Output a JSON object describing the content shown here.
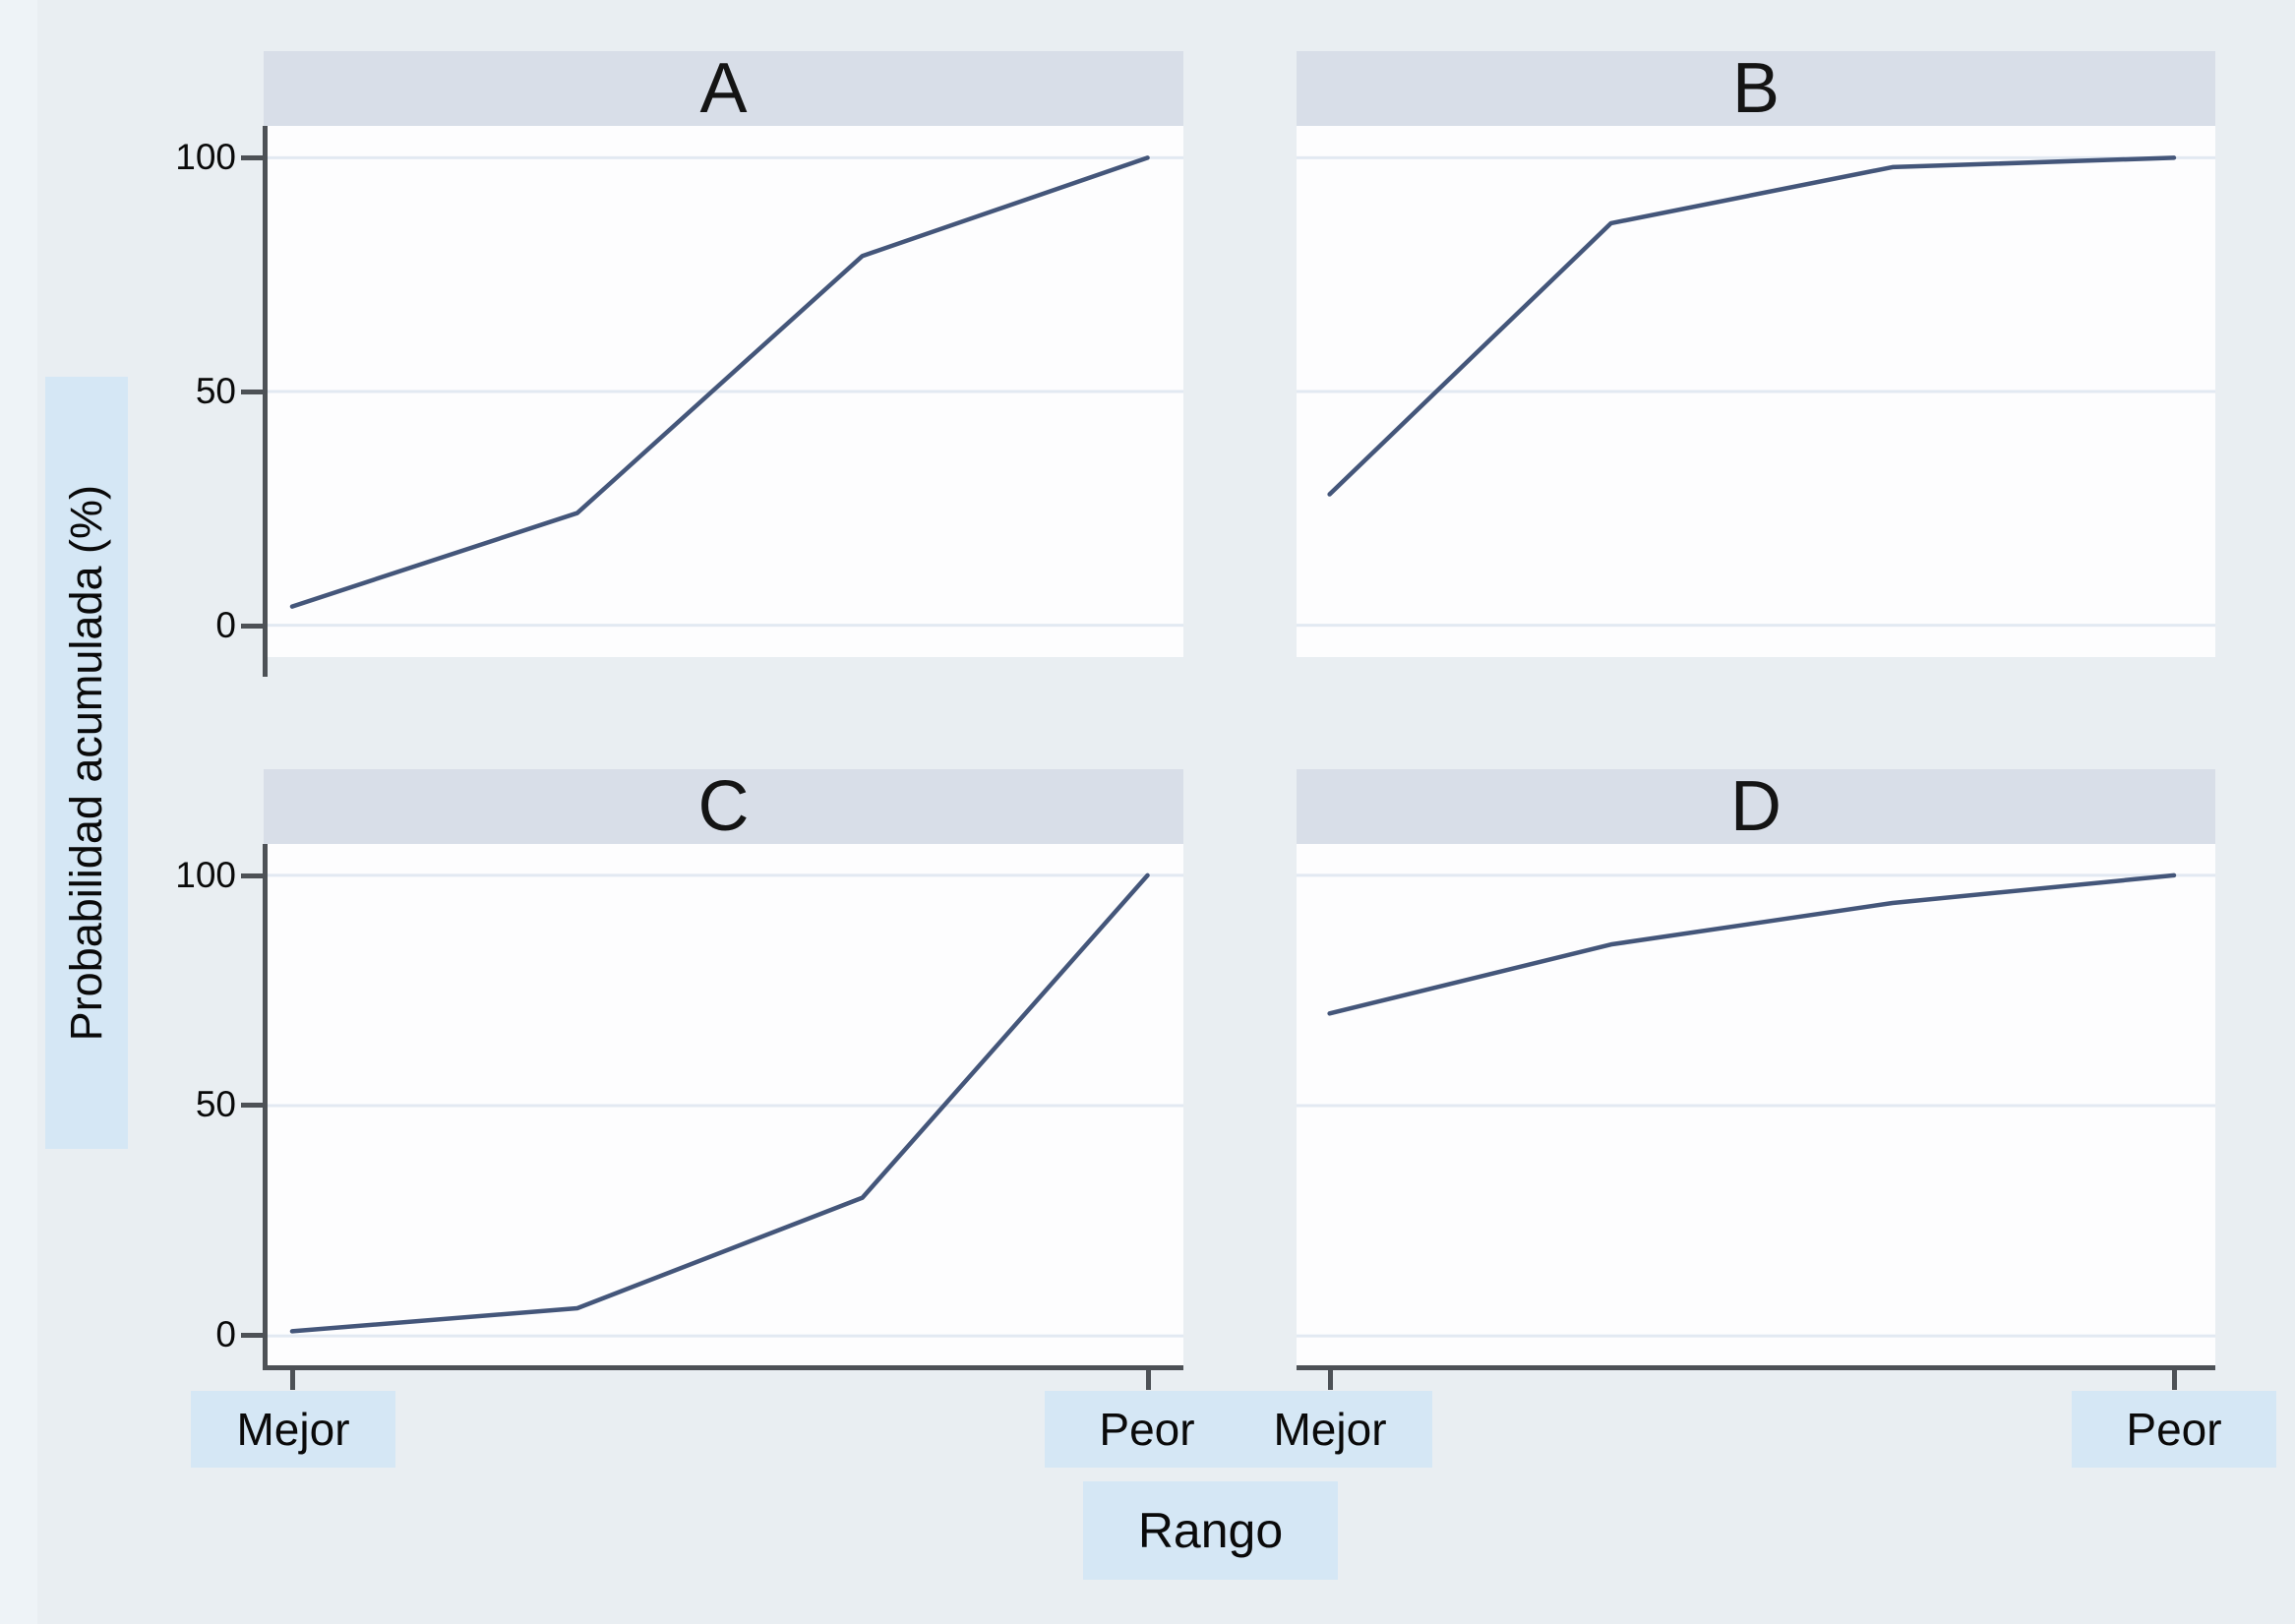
{
  "figure": {
    "ylabel": "Probabilidad acumulada (%)",
    "xlabel": "Rango",
    "x_axis_labels": {
      "left": "Mejor",
      "right": "Peor"
    },
    "y_tick_labels": [
      "100",
      "50",
      "0"
    ]
  },
  "chart_data": {
    "type": "line",
    "layout": "2x2 small-multiple panels, shared axes (x labels on bottom row, y ticks on left column)",
    "title": "",
    "xlabel": "Rango",
    "ylabel": "Probabilidad acumulada (%)",
    "x_endpoint_labels": [
      "Mejor",
      "Peor"
    ],
    "x_positions": [
      0,
      1,
      2,
      3
    ],
    "x_note": "4 evenly spaced rank positions from Mejor (best) to Peor (worst)",
    "ylim": [
      0,
      100
    ],
    "yticks": [
      0,
      50,
      100
    ],
    "grid": true,
    "legend": "none",
    "panels": [
      {
        "label": "A",
        "values": [
          4,
          24,
          79,
          100
        ]
      },
      {
        "label": "B",
        "values": [
          28,
          86,
          98,
          100
        ]
      },
      {
        "label": "C",
        "values": [
          1,
          6,
          30,
          100
        ]
      },
      {
        "label": "D",
        "values": [
          70,
          85,
          94,
          100
        ]
      }
    ],
    "colors": {
      "line": "#44567a",
      "gridline": "#e2e9f2",
      "axis": "#4d5156",
      "panel_titlebar": "#d8dee8",
      "plot_background": "#fdfdfe",
      "page_background": "#e9eef2",
      "label_highlight": "#d5e7f5"
    }
  }
}
